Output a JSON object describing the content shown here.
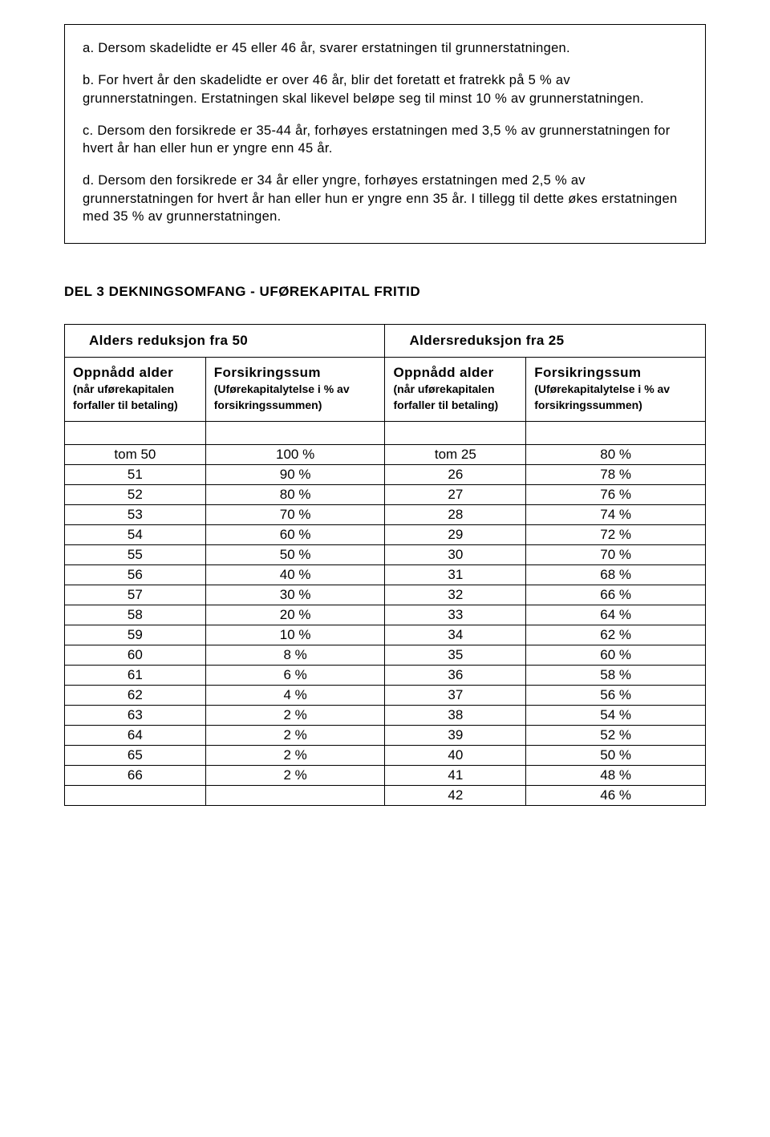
{
  "box": {
    "a": "a. Dersom skadelidte er 45 eller 46 år, svarer erstatningen til grunnerstatningen.",
    "b": "b. For hvert år den skadelidte er over 46 år, blir det foretatt et fratrekk på 5 % av grunnerstatningen. Erstatningen skal likevel beløpe seg til minst 10 % av grunnerstatningen.",
    "c": "c. Dersom den forsikrede er 35-44 år, forhøyes erstatningen med 3,5 % av grunnerstatningen for hvert år han eller hun er yngre enn 45 år.",
    "d": "d. Dersom den forsikrede er 34 år eller yngre, forhøyes erstatningen med 2,5 % av grunnerstatningen for hvert år han eller hun er yngre enn 35 år. I tillegg til dette økes erstatningen med 35 % av grunnerstatningen."
  },
  "section_title": "DEL 3 DEKNINGSOMFANG - UFØREKAPITAL FRITID",
  "table": {
    "hdr_left": "Alders reduksjon fra 50",
    "hdr_right": "Aldersreduksjon fra 25",
    "col1_bold": "Oppnådd alder",
    "col1_paren": "(når uførekapitalen forfaller til betaling)",
    "col2_bold": "Forsikringssum",
    "col2_paren": "(Uførekapitalytelse i % av forsikringssummen)",
    "col3_bold": "Oppnådd alder",
    "col3_paren": "(når uførekapitalen forfaller til betaling)",
    "col4_bold": "Forsikringssum",
    "col4_paren": "(Uførekapitalytelse i % av forsikringssummen)",
    "rows": [
      [
        "tom 50",
        "100 %",
        "tom 25",
        "80 %"
      ],
      [
        "51",
        "90 %",
        "26",
        "78 %"
      ],
      [
        "52",
        "80 %",
        "27",
        "76 %"
      ],
      [
        "53",
        "70 %",
        "28",
        "74 %"
      ],
      [
        "54",
        "60 %",
        "29",
        "72 %"
      ],
      [
        "55",
        "50 %",
        "30",
        "70 %"
      ],
      [
        "56",
        "40 %",
        "31",
        "68 %"
      ],
      [
        "57",
        "30 %",
        "32",
        "66 %"
      ],
      [
        "58",
        "20 %",
        "33",
        "64 %"
      ],
      [
        "59",
        "10 %",
        "34",
        "62 %"
      ],
      [
        "60",
        "8 %",
        "35",
        "60 %"
      ],
      [
        "61",
        "6 %",
        "36",
        "58 %"
      ],
      [
        "62",
        "4 %",
        "37",
        "56 %"
      ],
      [
        "63",
        "2 %",
        "38",
        "54 %"
      ],
      [
        "64",
        "2 %",
        "39",
        "52 %"
      ],
      [
        "65",
        "2 %",
        "40",
        "50 %"
      ],
      [
        "66",
        "2 %",
        "41",
        "48 %"
      ],
      [
        "",
        "",
        "42",
        "46 %"
      ]
    ]
  }
}
